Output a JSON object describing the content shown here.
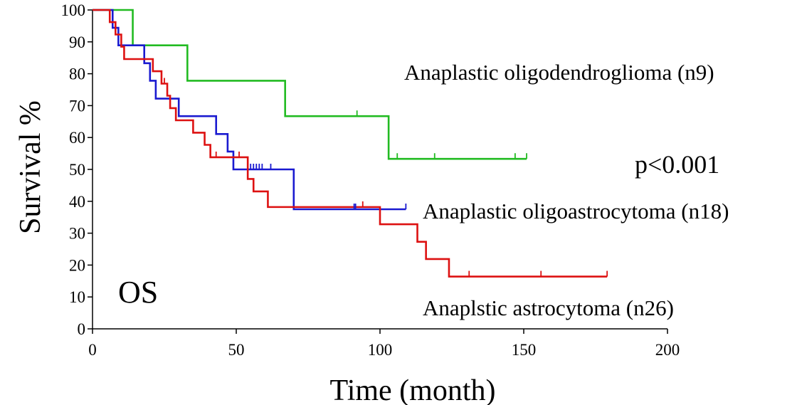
{
  "chart_data": {
    "type": "line",
    "step": true,
    "title": "",
    "xlabel": "Time (month)",
    "ylabel": "Survival %",
    "xlim": [
      0,
      200
    ],
    "ylim": [
      0,
      100
    ],
    "xticks": [
      0,
      50,
      100,
      150,
      200
    ],
    "yticks": [
      0,
      10,
      20,
      30,
      40,
      50,
      60,
      70,
      80,
      90,
      100
    ],
    "grid": false,
    "annotations": {
      "os_label": "OS",
      "p_value": "p<0.001"
    },
    "series": [
      {
        "name": "Anaplastic oligodendroglioma (n9)",
        "color": "#22bb22",
        "x": [
          0,
          14,
          33,
          67,
          103,
          151
        ],
        "y": [
          100,
          88.9,
          77.8,
          66.7,
          53.3,
          53.3
        ],
        "censored": [
          {
            "x": 92,
            "y": 66.7
          },
          {
            "x": 106,
            "y": 53.3
          },
          {
            "x": 119,
            "y": 53.3
          },
          {
            "x": 147,
            "y": 53.3
          },
          {
            "x": 151,
            "y": 53.3
          }
        ]
      },
      {
        "name": "Anaplastic oligoastrocytoma (n18)",
        "color": "#1a1ad0",
        "x": [
          0,
          7,
          9,
          18,
          20,
          22,
          30,
          43,
          47,
          49,
          70,
          109
        ],
        "y": [
          100,
          94.4,
          88.9,
          83.3,
          77.8,
          72.2,
          66.7,
          61.1,
          55.6,
          50,
          37.5,
          37.5
        ],
        "censored": [
          {
            "x": 55,
            "y": 50
          },
          {
            "x": 56,
            "y": 50
          },
          {
            "x": 57,
            "y": 50
          },
          {
            "x": 58,
            "y": 50
          },
          {
            "x": 59,
            "y": 50
          },
          {
            "x": 62,
            "y": 50
          },
          {
            "x": 91,
            "y": 37.5
          },
          {
            "x": 91.5,
            "y": 37.5
          },
          {
            "x": 109,
            "y": 37.5
          }
        ]
      },
      {
        "name": "Anaplstic astrocytoma (n26)",
        "color": "#dd1111",
        "x": [
          0,
          6,
          8,
          10,
          11,
          21,
          24,
          26,
          27,
          29,
          35,
          39,
          41,
          43,
          46,
          54,
          56,
          61,
          100,
          113,
          116,
          124,
          179
        ],
        "y": [
          100,
          96.2,
          92.3,
          88.5,
          84.6,
          80.8,
          76.9,
          73.1,
          69.2,
          65.4,
          61.5,
          57.7,
          53.8,
          53.8,
          53.8,
          47,
          43.1,
          38.2,
          32.8,
          27.3,
          21.9,
          16.4,
          16.4
        ],
        "censored": [
          {
            "x": 25,
            "y": 76.9
          },
          {
            "x": 43,
            "y": 53.8
          },
          {
            "x": 51,
            "y": 53.8
          },
          {
            "x": 94,
            "y": 38.2
          },
          {
            "x": 131,
            "y": 16.4
          },
          {
            "x": 156,
            "y": 16.4
          },
          {
            "x": 179,
            "y": 16.4
          }
        ]
      }
    ],
    "series_labels": [
      "Anaplastic oligodendroglioma (n9)",
      "Anaplastic oligoastrocytoma (n18)",
      "Anaplstic astrocytoma (n26)"
    ]
  }
}
